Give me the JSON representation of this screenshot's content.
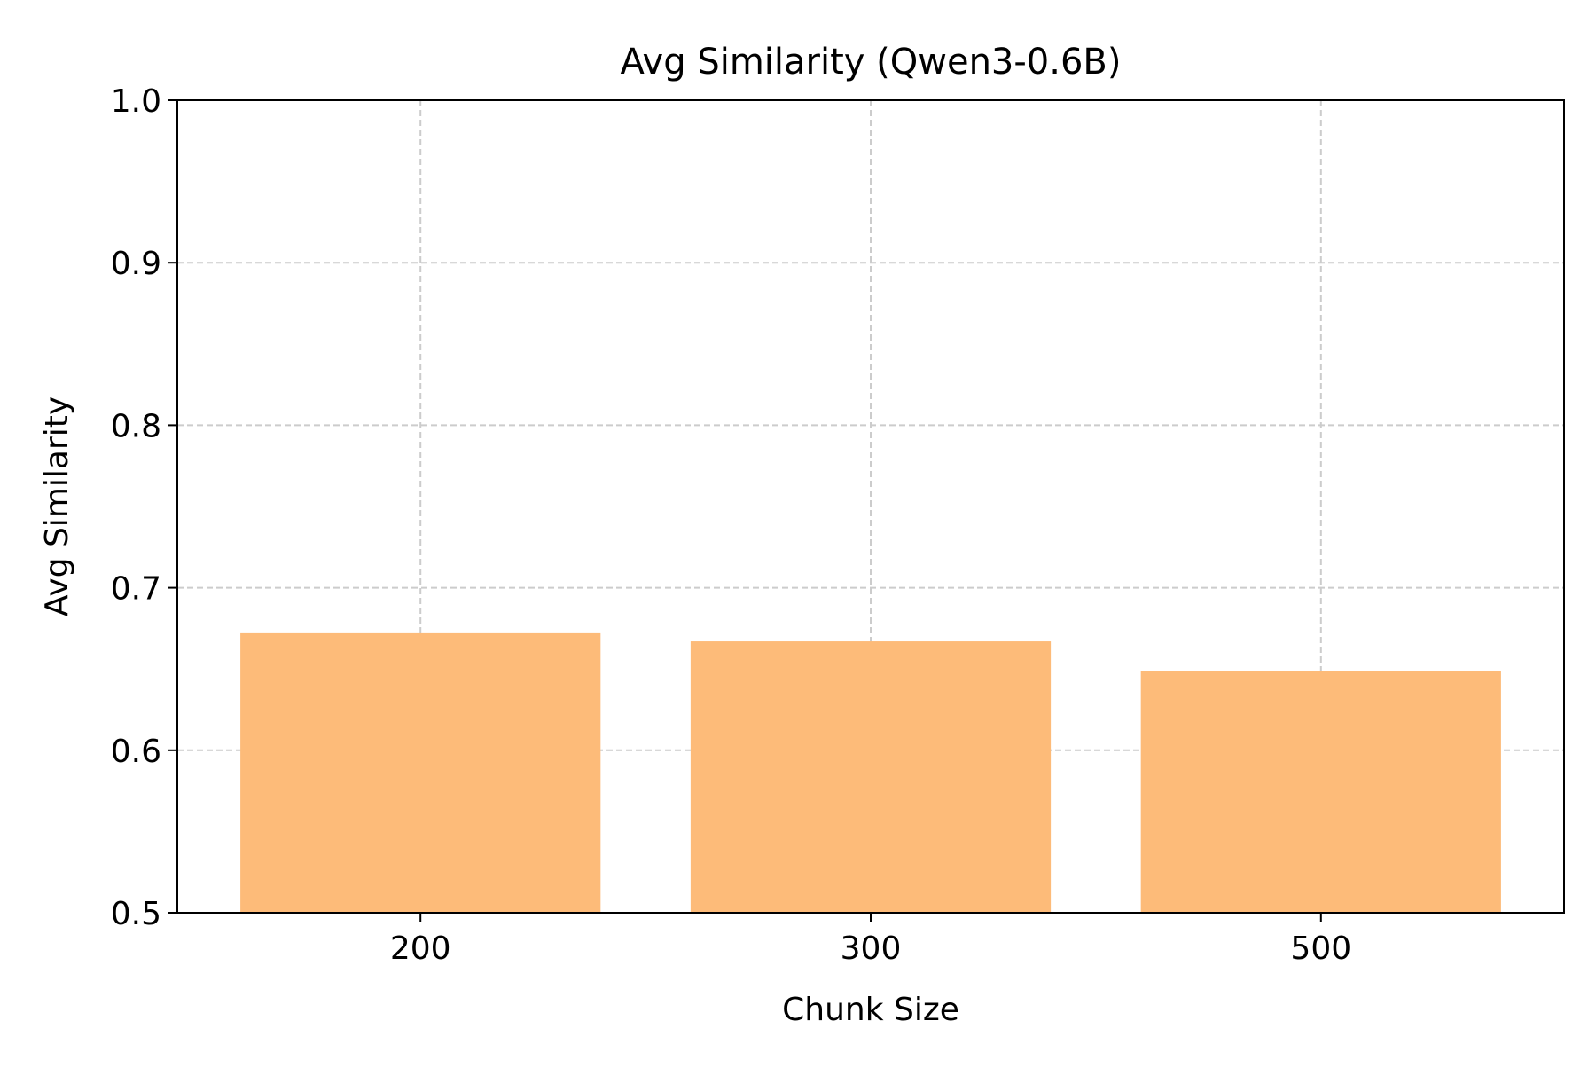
{
  "chart_data": {
    "type": "bar",
    "title": "Avg Similarity (Qwen3-0.6B)",
    "xlabel": "Chunk Size",
    "ylabel": "Avg Similarity",
    "categories": [
      "200",
      "300",
      "500"
    ],
    "values": [
      0.672,
      0.667,
      0.649
    ],
    "ylim": [
      0.5,
      1.0
    ],
    "yticks": [
      "0.5",
      "0.6",
      "0.7",
      "0.8",
      "0.9",
      "1.0"
    ],
    "grid": true,
    "legend": "none",
    "bar_color": "#fdbb79"
  }
}
